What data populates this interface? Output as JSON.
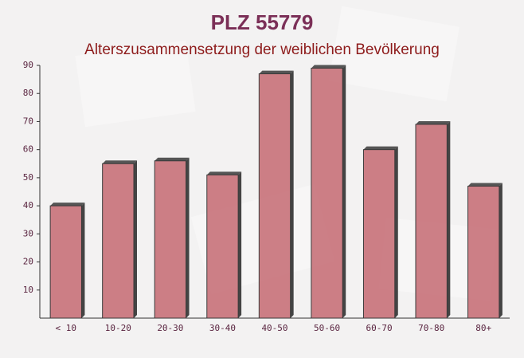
{
  "chart_data": {
    "type": "bar",
    "title": "PLZ 55779",
    "subtitle": "Alterszusammensetzung der weiblichen Bevölkerung",
    "categories": [
      "< 10",
      "10-20",
      "20-30",
      "30-40",
      "40-50",
      "50-60",
      "60-70",
      "70-80",
      "80+"
    ],
    "values": [
      40,
      55,
      56,
      51,
      87,
      89,
      60,
      69,
      47
    ],
    "color": "#c46a72",
    "ylim": [
      0,
      90
    ],
    "yticks": [
      10,
      20,
      30,
      40,
      50,
      60,
      70,
      80,
      90
    ],
    "grid": false
  }
}
